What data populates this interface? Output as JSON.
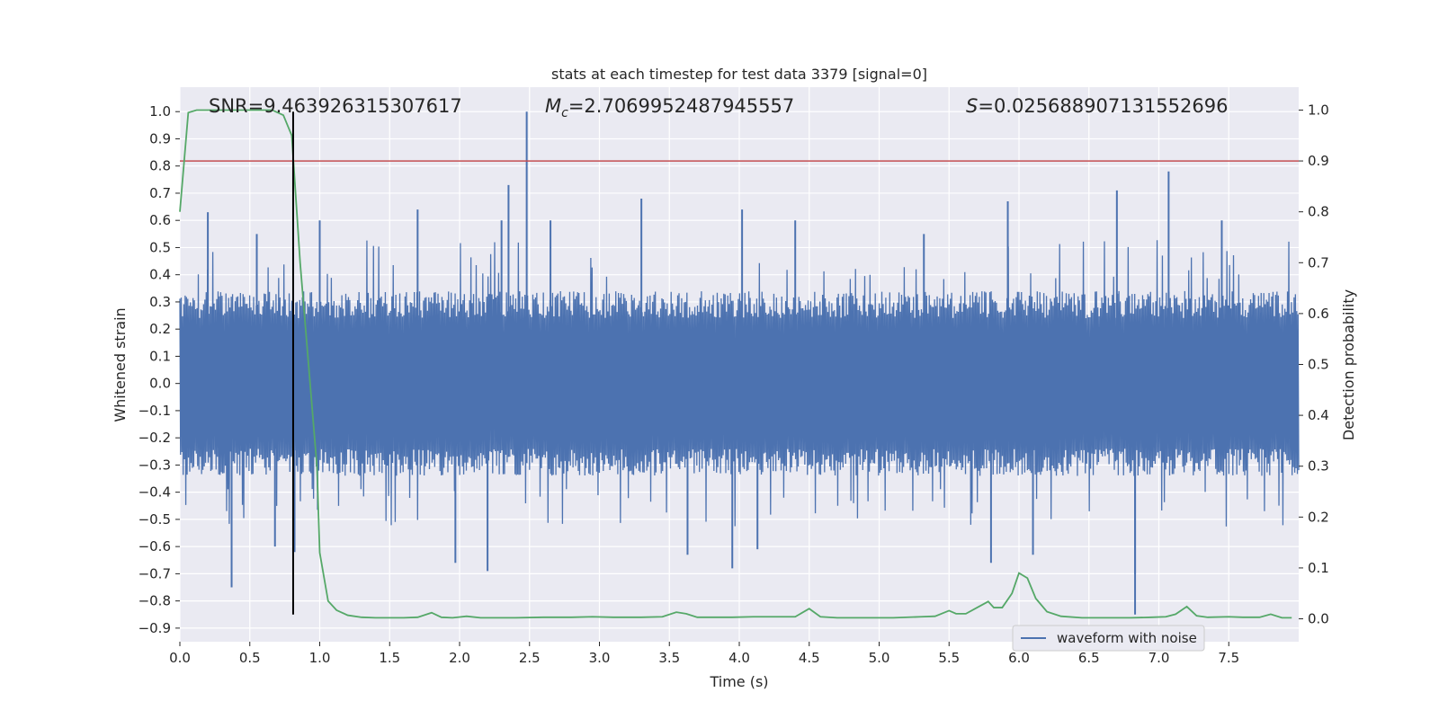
{
  "chart_data": {
    "type": "line",
    "title": "stats at each timestep for test data 3379 [signal=0]",
    "xlabel": "Time (s)",
    "ylabel": "Whitened strain",
    "y2label": "Detection probability",
    "xlim": [
      0,
      8
    ],
    "ylim": [
      -0.95,
      1.09
    ],
    "y2lim": [
      -0.045,
      1.045
    ],
    "xticks": [
      "0.0",
      "0.5",
      "1.0",
      "1.5",
      "2.0",
      "2.5",
      "3.0",
      "3.5",
      "4.0",
      "4.5",
      "5.0",
      "5.5",
      "6.0",
      "6.5",
      "7.0",
      "7.5"
    ],
    "yticks": [
      "1.0",
      "0.9",
      "0.8",
      "0.7",
      "0.6",
      "0.5",
      "0.4",
      "0.3",
      "0.2",
      "0.1",
      "0.0",
      "-0.1",
      "-0.2",
      "-0.3",
      "-0.4",
      "-0.5",
      "-0.6",
      "-0.7",
      "-0.8",
      "-0.9"
    ],
    "y2ticks": [
      "0.0",
      "0.1",
      "0.2",
      "0.3",
      "0.4",
      "0.5",
      "0.6",
      "0.7",
      "0.8",
      "0.9",
      "1.0"
    ],
    "grid": true,
    "legend": {
      "placement": "lower-right",
      "entries": [
        "waveform with noise"
      ]
    },
    "annotations": {
      "snr": "SNR=9.463926315307617",
      "mc_symbol": "M",
      "mc_sub": "c",
      "mc_value": "=2.7069952487945557",
      "s_symbol": "S",
      "s_value": "=0.025688907131552696"
    },
    "threshold": {
      "value": 0.9,
      "axis": "right",
      "color": "#c44e52"
    },
    "vline": {
      "x": 0.81,
      "y_top": 1.0,
      "y_bottom": -0.85,
      "color": "#000000"
    },
    "series": [
      {
        "name": "waveform with noise",
        "axis": "left",
        "color": "#4c72b0",
        "description": "whitened strain noise trace, band approx +/-0.3 with spikes",
        "spikes": [
          [
            0.2,
            0.63
          ],
          [
            0.37,
            -0.75
          ],
          [
            0.55,
            0.55
          ],
          [
            0.68,
            -0.6
          ],
          [
            0.82,
            -0.62
          ],
          [
            1.0,
            0.6
          ],
          [
            1.7,
            0.64
          ],
          [
            1.97,
            -0.66
          ],
          [
            2.2,
            -0.69
          ],
          [
            2.3,
            0.6
          ],
          [
            2.35,
            0.73
          ],
          [
            2.48,
            1.0
          ],
          [
            2.65,
            0.6
          ],
          [
            3.3,
            0.68
          ],
          [
            3.63,
            -0.63
          ],
          [
            3.95,
            -0.68
          ],
          [
            4.02,
            0.64
          ],
          [
            4.13,
            -0.61
          ],
          [
            4.4,
            0.6
          ],
          [
            5.32,
            0.55
          ],
          [
            5.8,
            -0.66
          ],
          [
            5.92,
            0.67
          ],
          [
            6.1,
            -0.63
          ],
          [
            6.7,
            0.71
          ],
          [
            6.83,
            -0.85
          ],
          [
            6.83,
            -0.7
          ],
          [
            7.07,
            0.78
          ],
          [
            7.45,
            0.6
          ]
        ]
      },
      {
        "name": "detection probability",
        "axis": "right",
        "color": "#55a868",
        "x": [
          0.0,
          0.06,
          0.12,
          0.2,
          0.3,
          0.4,
          0.5,
          0.6,
          0.66,
          0.74,
          0.8,
          0.86,
          0.92,
          0.98,
          1.0,
          1.06,
          1.12,
          1.2,
          1.3,
          1.4,
          1.5,
          1.6,
          1.7,
          1.8,
          1.87,
          1.95,
          2.05,
          2.15,
          2.25,
          2.4,
          2.6,
          2.8,
          2.95,
          3.1,
          3.3,
          3.45,
          3.55,
          3.62,
          3.7,
          3.8,
          3.95,
          4.1,
          4.25,
          4.4,
          4.5,
          4.58,
          4.7,
          4.9,
          5.1,
          5.3,
          5.4,
          5.5,
          5.55,
          5.62,
          5.7,
          5.78,
          5.82,
          5.88,
          5.95,
          6.0,
          6.06,
          6.12,
          6.2,
          6.3,
          6.45,
          6.6,
          6.8,
          6.95,
          7.05,
          7.12,
          7.2,
          7.27,
          7.35,
          7.5,
          7.6,
          7.72,
          7.8,
          7.88,
          7.95
        ],
        "values": [
          0.8,
          0.995,
          1.0,
          1.0,
          1.0,
          1.0,
          1.0,
          1.0,
          1.0,
          0.99,
          0.95,
          0.7,
          0.5,
          0.3,
          0.13,
          0.035,
          0.017,
          0.007,
          0.003,
          0.002,
          0.002,
          0.002,
          0.003,
          0.012,
          0.003,
          0.002,
          0.005,
          0.002,
          0.002,
          0.002,
          0.003,
          0.003,
          0.004,
          0.003,
          0.003,
          0.004,
          0.013,
          0.01,
          0.003,
          0.003,
          0.003,
          0.004,
          0.004,
          0.004,
          0.02,
          0.004,
          0.002,
          0.002,
          0.002,
          0.004,
          0.005,
          0.016,
          0.01,
          0.01,
          0.022,
          0.034,
          0.022,
          0.022,
          0.05,
          0.09,
          0.08,
          0.04,
          0.014,
          0.005,
          0.002,
          0.002,
          0.002,
          0.003,
          0.004,
          0.009,
          0.024,
          0.006,
          0.003,
          0.004,
          0.003,
          0.003,
          0.009,
          0.002,
          0.002
        ]
      }
    ]
  }
}
